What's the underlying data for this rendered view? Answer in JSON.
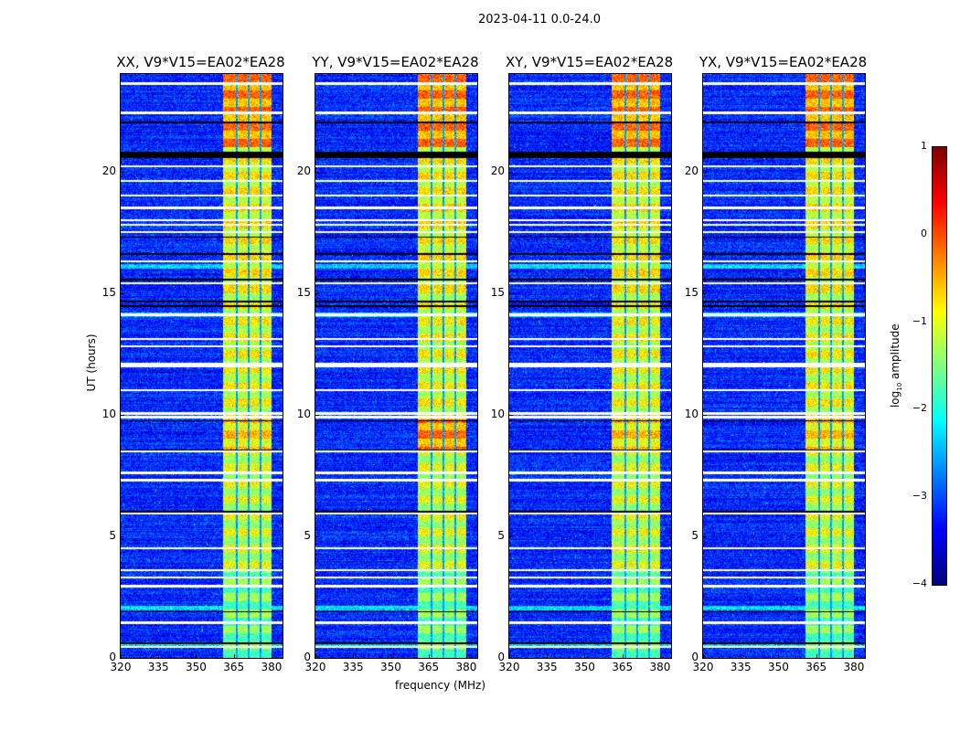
{
  "suptitle": "2023-04-11 0.0-24.0",
  "chart_data": {
    "type": "heatmap",
    "panels": [
      {
        "title": "XX, V9*V15=EA02*EA28",
        "pol": "XX"
      },
      {
        "title": "YY, V9*V15=EA02*EA28",
        "pol": "YY"
      },
      {
        "title": "XY, V9*V15=EA02*EA28",
        "pol": "XY"
      },
      {
        "title": "YX, V9*V15=EA02*EA28",
        "pol": "YX"
      }
    ],
    "xlabel": "frequency (MHz)",
    "ylabel": "UT (hours)",
    "xlim": [
      320,
      384.4
    ],
    "ylim": [
      0,
      24
    ],
    "xticks": [
      320,
      335,
      350,
      365,
      380
    ],
    "yticks": [
      0,
      5,
      10,
      15,
      20
    ],
    "colorbar": {
      "label_prefix": "log",
      "label_sub": "10",
      "label_suffix": " amplitude",
      "range": [
        -4,
        1
      ],
      "ticks": [
        1,
        0,
        -1,
        -2,
        -3,
        -4
      ],
      "tick_labels": [
        "1",
        "0",
        "−1",
        "−2",
        "−3",
        "−4"
      ],
      "colormap": "jet"
    },
    "background_log_amplitude": -3.2,
    "rfi_subbands_mhz": [
      [
        360.7,
        365.8
      ],
      [
        366.5,
        370.5
      ],
      [
        371.3,
        375.3
      ],
      [
        376.0,
        380.0
      ]
    ],
    "band_log_amplitude_by_time": [
      {
        "hours": [
          0,
          3.5
        ],
        "value": -1.6
      },
      {
        "hours": [
          3.5,
          8.5
        ],
        "value": -1.2
      },
      {
        "hours": [
          8.5,
          9.8
        ],
        "value": -0.8
      },
      {
        "hours": [
          9.8,
          15.0
        ],
        "value": -1.1
      },
      {
        "hours": [
          15.0,
          21.0
        ],
        "value": -1.0
      },
      {
        "hours": [
          21.0,
          24.0
        ],
        "value": -0.4
      }
    ],
    "flagged_white_hours": [
      0.45,
      1.45,
      2.95,
      3.3,
      3.6,
      4.5,
      5.95,
      7.3,
      7.6,
      8.5,
      9.9,
      10.05,
      11.0,
      12.0,
      12.1,
      12.8,
      13.1,
      14.1,
      15.4,
      16.3,
      17.5,
      17.8,
      18.0,
      18.5,
      19.0,
      19.6,
      20.2,
      22.4,
      23.6
    ],
    "black_hours": [
      0.6,
      1.9,
      6.0,
      8.55,
      9.75,
      14.45,
      14.65,
      15.55,
      16.6,
      17.3,
      20.6,
      20.7,
      22.0
    ]
  }
}
